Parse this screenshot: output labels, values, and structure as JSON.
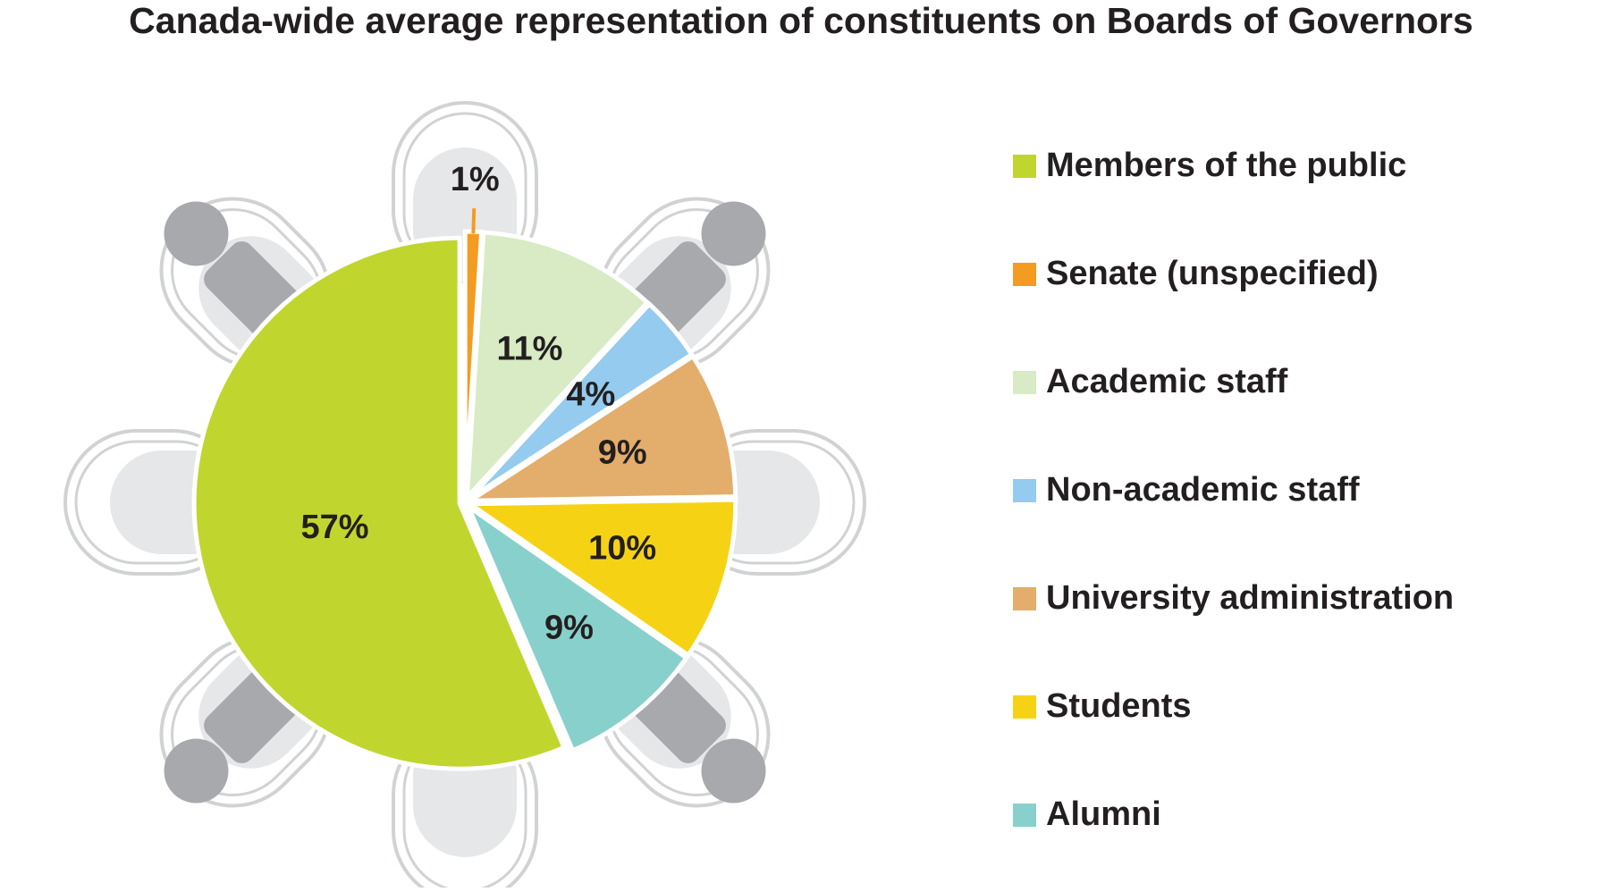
{
  "chart_data": {
    "type": "pie",
    "title": "Canada-wide average representation of constituents on Boards of Governors",
    "categories": [
      "Members of the public",
      "Senate (unspecified)",
      "Academic staff",
      "Non-academic staff",
      "University administration",
      "Students",
      "Alumni"
    ],
    "values": [
      57,
      1,
      11,
      4,
      9,
      10,
      9
    ],
    "value_labels": [
      "57%",
      "1%",
      "11%",
      "4%",
      "9%",
      "10%",
      "9%"
    ],
    "colors": [
      "#c1d52f",
      "#f39c21",
      "#d8ebc4",
      "#94cbee",
      "#e3ad6b",
      "#f5d314",
      "#88d0cc"
    ],
    "legend": "right"
  }
}
